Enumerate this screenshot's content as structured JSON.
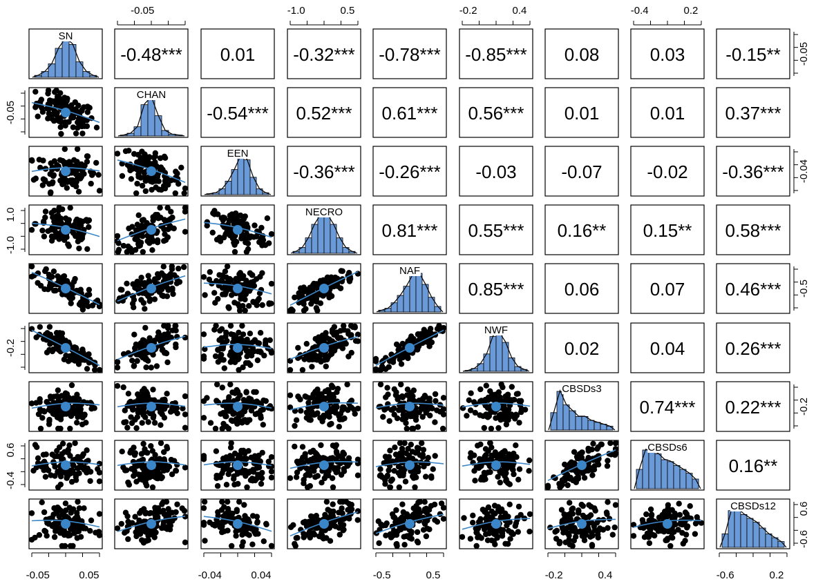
{
  "chart_data": {
    "type": "scatter-matrix",
    "variables": [
      "SN",
      "CHAN",
      "EEN",
      "NECRO",
      "NAF",
      "NWF",
      "CBSDs3",
      "CBSDs6",
      "CBSDs12"
    ],
    "correlations": [
      [
        "",
        "-0.48***",
        "0.01",
        "-0.32***",
        "-0.78***",
        "-0.85***",
        "0.08",
        "0.03",
        "-0.15**"
      ],
      [
        "",
        "",
        "-0.54***",
        "0.52***",
        "0.61***",
        "0.56***",
        "0.01",
        "0.01",
        "0.37***"
      ],
      [
        "",
        "",
        "",
        "-0.36***",
        "-0.26***",
        "-0.03",
        "-0.07",
        "-0.02",
        "-0.36***"
      ],
      [
        "",
        "",
        "",
        "",
        "0.81***",
        "0.55***",
        "0.16**",
        "0.15**",
        "0.58***"
      ],
      [
        "",
        "",
        "",
        "",
        "",
        "0.85***",
        "0.06",
        "0.07",
        "0.46***"
      ],
      [
        "",
        "",
        "",
        "",
        "",
        "",
        "0.02",
        "0.04",
        "0.26***"
      ],
      [
        "",
        "",
        "",
        "",
        "",
        "",
        "",
        "0.74***",
        "0.22***"
      ],
      [
        "",
        "",
        "",
        "",
        "",
        "",
        "",
        "",
        "0.16**"
      ],
      [
        "",
        "",
        "",
        "",
        "",
        "",
        "",
        "",
        ""
      ]
    ],
    "histograms": [
      [
        2,
        6,
        14,
        30,
        40,
        34,
        16,
        6,
        2
      ],
      [
        1,
        3,
        10,
        34,
        42,
        22,
        6,
        2,
        1
      ],
      [
        1,
        2,
        6,
        14,
        26,
        40,
        36,
        18,
        6,
        2
      ],
      [
        2,
        6,
        16,
        30,
        40,
        40,
        30,
        16,
        6,
        2
      ],
      [
        2,
        4,
        10,
        18,
        28,
        40,
        42,
        30,
        16,
        6
      ],
      [
        1,
        3,
        8,
        18,
        36,
        40,
        30,
        14,
        5,
        2
      ],
      [
        18,
        40,
        26,
        20,
        14,
        14,
        10,
        8,
        6,
        4
      ],
      [
        20,
        40,
        38,
        36,
        30,
        28,
        24,
        20,
        16,
        10
      ],
      [
        14,
        38,
        40,
        34,
        30,
        26,
        20,
        14,
        10,
        6
      ]
    ],
    "axis_ticks": {
      "top": [
        {
          "col": 1,
          "labels": [
            "-0.05"
          ]
        },
        {
          "col": 3,
          "labels": [
            "-1.0",
            "0.5"
          ]
        },
        {
          "col": 5,
          "labels": [
            "-0.2",
            "0.4"
          ]
        },
        {
          "col": 7,
          "labels": [
            "-0.4",
            "0.2"
          ]
        }
      ],
      "bottom": [
        {
          "col": 0,
          "labels": [
            "-0.05",
            "0.05"
          ]
        },
        {
          "col": 2,
          "labels": [
            "-0.04",
            "0.04"
          ]
        },
        {
          "col": 4,
          "labels": [
            "-0.5",
            "0.5"
          ]
        },
        {
          "col": 6,
          "labels": [
            "-0.2",
            "0.4"
          ]
        },
        {
          "col": 8,
          "labels": [
            "-0.6",
            "0.2"
          ]
        }
      ],
      "left": [
        {
          "row": 1,
          "labels": [
            "-0.05"
          ]
        },
        {
          "row": 3,
          "labels": [
            "1.0",
            "-1.0"
          ]
        },
        {
          "row": 5,
          "labels": [
            "-0.2"
          ]
        },
        {
          "row": 7,
          "labels": [
            "0.6",
            "-0.4"
          ]
        }
      ],
      "right": [
        {
          "row": 0,
          "labels": [
            "-0.05"
          ]
        },
        {
          "row": 2,
          "labels": [
            "-0.04"
          ]
        },
        {
          "row": 4,
          "labels": [
            "-0.5"
          ]
        },
        {
          "row": 6,
          "labels": [
            "-0.2"
          ]
        },
        {
          "row": 8,
          "labels": [
            "0.6",
            "-0.6"
          ]
        }
      ]
    },
    "point_color": "#000000",
    "bar_color": "#6a9ad8",
    "smooth_color": "#3b86c8",
    "mean_color": "#3b86c8"
  }
}
